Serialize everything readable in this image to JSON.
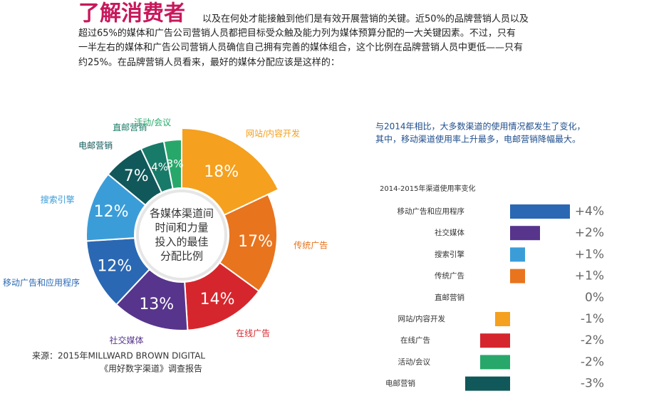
{
  "header": {
    "title": "了解消费者",
    "paragraph": [
      "以及在何处才能接触到他们是有效开展营销的关键。近50%的品牌营销人员以及",
      "超过65%的媒体和广告公司营销人员都把目标受众触及能力列为媒体预算分配的一大关键因素。不过，只有",
      "一半左右的媒体和广告公司营销人员确信自己拥有完善的媒体组合，这个比例在品牌营销人员中更低——只有",
      "约25%。在品牌营销人员看来，最好的媒体分配应该是这样的："
    ]
  },
  "source": [
    "来源：2015年MILLWARD BROWN DIGITAL",
    "《用好数字渠道》调查报告"
  ],
  "chart_data": [
    {
      "type": "pie",
      "center_text": [
        "各媒体渠道间",
        "时间和力量",
        "投入的最佳",
        "分配比例"
      ],
      "categories": [
        "网站/内容开发",
        "传统广告",
        "在线广告",
        "社交媒体",
        "移动广告和应用程序",
        "搜索引擎",
        "电邮营销",
        "直邮营销",
        "活动/会议"
      ],
      "values": [
        18,
        17,
        14,
        13,
        12,
        12,
        7,
        4,
        3
      ],
      "value_labels": [
        "18%",
        "17%",
        "14%",
        "13%",
        "12%",
        "12%",
        "7%",
        "4%",
        "3%"
      ],
      "colors": [
        "#f5a01e",
        "#e8741e",
        "#d6262d",
        "#57358c",
        "#2a68b3",
        "#3b9dd8",
        "#11585a",
        "#187a68",
        "#27a86a"
      ]
    },
    {
      "type": "hbar",
      "subtitle": [
        "与2014年相比，大多数渠道的使用情况都发生了变化，",
        "其中，移动渠道使用率上升最多，电邮营销降幅最大。"
      ],
      "title": "2014-2015年渠道使用率变化",
      "categories": [
        "移动广告和应用程序",
        "社交媒体",
        "搜索引擎",
        "传统广告",
        "直邮营销",
        "网站/内容开发",
        "在线广告",
        "活动/会议",
        "电邮营销"
      ],
      "values": [
        4,
        2,
        1,
        1,
        0,
        -1,
        -2,
        -2,
        -3
      ],
      "value_labels": [
        "+4%",
        "+2%",
        "+1%",
        "+1%",
        "0%",
        "-1%",
        "-2%",
        "-2%",
        "-3%"
      ],
      "colors": [
        "#2a68b3",
        "#57358c",
        "#3b9dd8",
        "#e8741e",
        null,
        "#f5a01e",
        "#d6262d",
        "#27a86a",
        "#11585a"
      ],
      "xlim": [
        -3,
        4
      ]
    }
  ]
}
